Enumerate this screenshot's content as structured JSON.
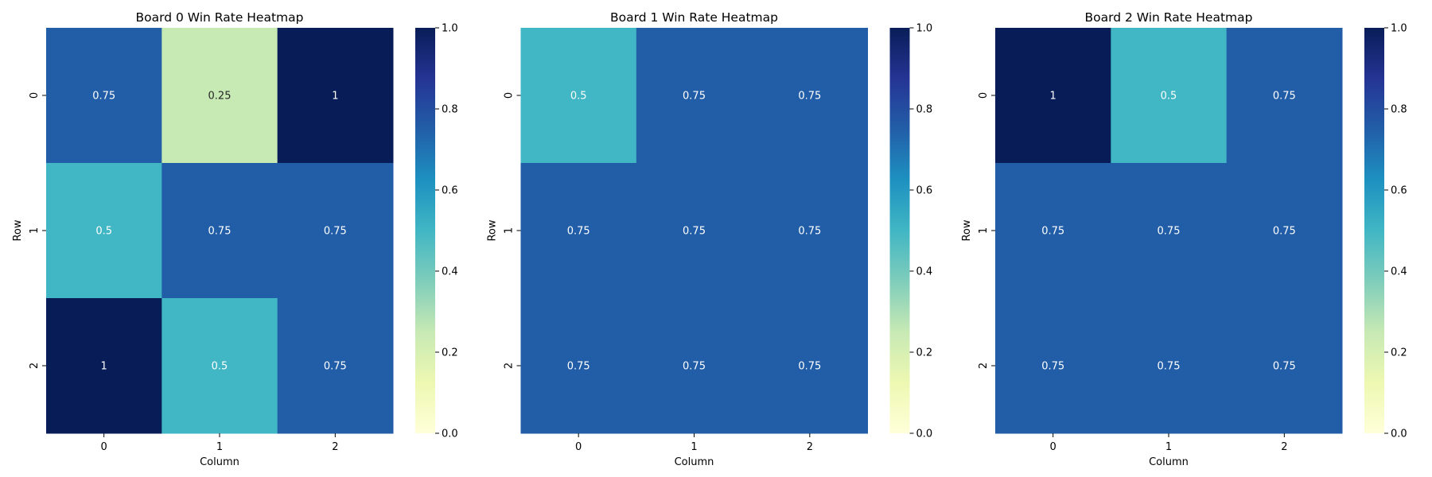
{
  "chart_data": [
    {
      "type": "heatmap",
      "title": "Board 0 Win Rate Heatmap",
      "xlabel": "Column",
      "ylabel": "Row",
      "x_categories": [
        "0",
        "1",
        "2"
      ],
      "y_categories": [
        "0",
        "1",
        "2"
      ],
      "values": [
        [
          0.75,
          0.25,
          1
        ],
        [
          0.5,
          0.75,
          0.75
        ],
        [
          1,
          0.5,
          0.75
        ]
      ],
      "cell_labels": [
        [
          "0.75",
          "0.25",
          "1"
        ],
        [
          "0.5",
          "0.75",
          "0.75"
        ],
        [
          "1",
          "0.5",
          "0.75"
        ]
      ],
      "colorbar": {
        "range": [
          0,
          1
        ],
        "ticks": [
          "0.0",
          "0.2",
          "0.4",
          "0.6",
          "0.8",
          "1.0"
        ],
        "colormap": "YlGnBu"
      }
    },
    {
      "type": "heatmap",
      "title": "Board 1 Win Rate Heatmap",
      "xlabel": "Column",
      "ylabel": "Row",
      "x_categories": [
        "0",
        "1",
        "2"
      ],
      "y_categories": [
        "0",
        "1",
        "2"
      ],
      "values": [
        [
          0.5,
          0.75,
          0.75
        ],
        [
          0.75,
          0.75,
          0.75
        ],
        [
          0.75,
          0.75,
          0.75
        ]
      ],
      "cell_labels": [
        [
          "0.5",
          "0.75",
          "0.75"
        ],
        [
          "0.75",
          "0.75",
          "0.75"
        ],
        [
          "0.75",
          "0.75",
          "0.75"
        ]
      ],
      "colorbar": {
        "range": [
          0,
          1
        ],
        "ticks": [
          "0.0",
          "0.2",
          "0.4",
          "0.6",
          "0.8",
          "1.0"
        ],
        "colormap": "YlGnBu"
      }
    },
    {
      "type": "heatmap",
      "title": "Board 2 Win Rate Heatmap",
      "xlabel": "Column",
      "ylabel": "Row",
      "x_categories": [
        "0",
        "1",
        "2"
      ],
      "y_categories": [
        "0",
        "1",
        "2"
      ],
      "values": [
        [
          1,
          0.5,
          0.75
        ],
        [
          0.75,
          0.75,
          0.75
        ],
        [
          0.75,
          0.75,
          0.75
        ]
      ],
      "cell_labels": [
        [
          "1",
          "0.5",
          "0.75"
        ],
        [
          "0.75",
          "0.75",
          "0.75"
        ],
        [
          "0.75",
          "0.75",
          "0.75"
        ]
      ],
      "colorbar": {
        "range": [
          0,
          1
        ],
        "ticks": [
          "0.0",
          "0.2",
          "0.4",
          "0.6",
          "0.8",
          "1.0"
        ],
        "colormap": "YlGnBu"
      }
    }
  ]
}
